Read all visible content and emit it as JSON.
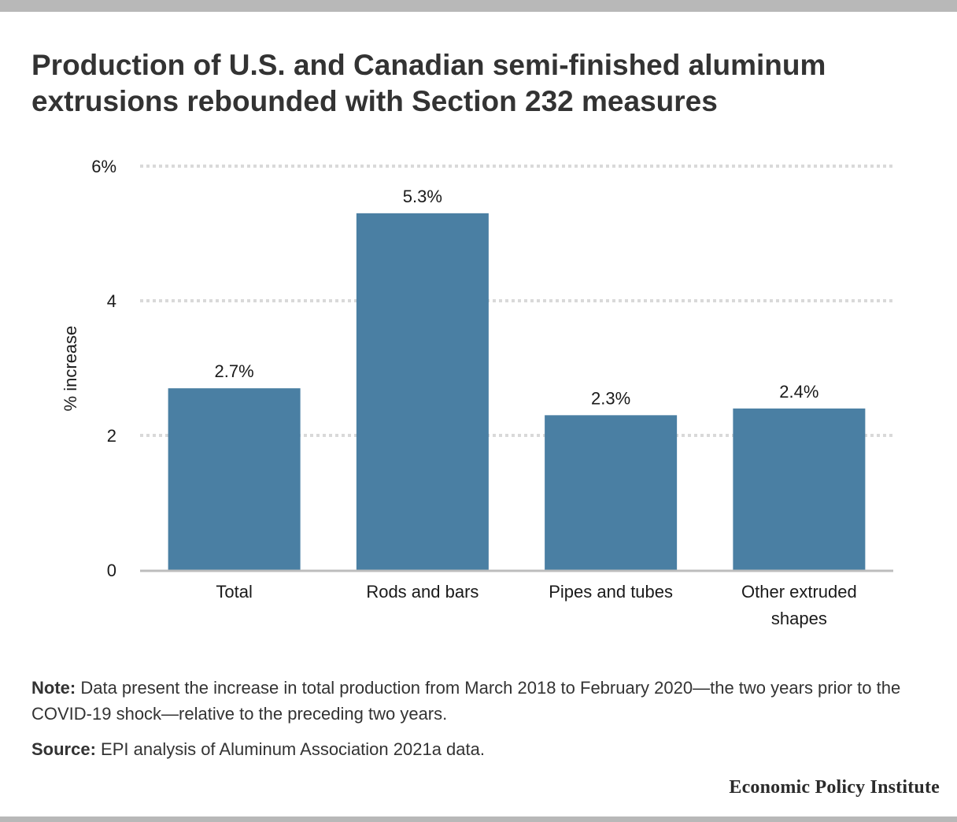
{
  "title": "Production of U.S. and Canadian semi-finished aluminum extrusions rebounded with Section 232 measures",
  "chart_data": {
    "type": "bar",
    "categories": [
      "Total",
      "Rods and bars",
      "Pipes and tubes",
      "Other extruded shapes"
    ],
    "category_lines": [
      [
        "Total"
      ],
      [
        "Rods and bars"
      ],
      [
        "Pipes and tubes"
      ],
      [
        "Other extruded",
        "shapes"
      ]
    ],
    "values": [
      2.7,
      5.3,
      2.3,
      2.4
    ],
    "data_labels": [
      "2.7%",
      "5.3%",
      "2.3%",
      "2.4%"
    ],
    "ylabel": "% increase",
    "ylim": [
      0,
      6
    ],
    "yticks": [
      0,
      2,
      4,
      6
    ],
    "ytick_labels": [
      "0",
      "2",
      "4",
      "6%"
    ],
    "grid": true,
    "bar_color": "#4a7fa3",
    "grid_color": "#d9d9d9"
  },
  "note": {
    "label": "Note:",
    "text": " Data present the increase in total production from March 2018 to February 2020—the two years prior to the COVID-19 shock—relative to the preceding two years."
  },
  "source": {
    "label": "Source:",
    "text": " EPI analysis of Aluminum Association 2021a data."
  },
  "brand": "Economic Policy Institute"
}
